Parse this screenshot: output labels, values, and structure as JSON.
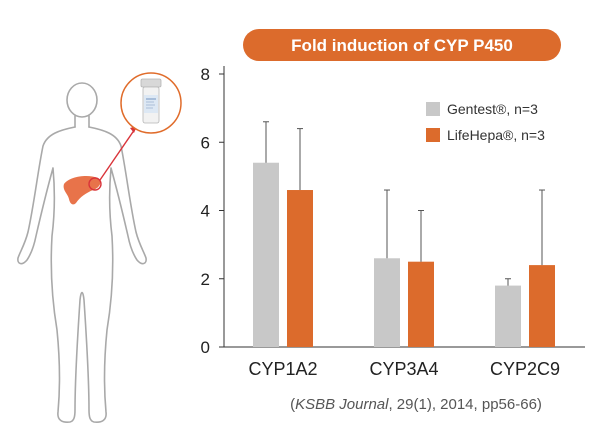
{
  "chart_data": {
    "type": "bar",
    "title": "Fold induction of CYP P450",
    "categories": [
      "CYP1A2",
      "CYP3A4",
      "CYP2C9"
    ],
    "series": [
      {
        "name": "Gentest®, n=3",
        "values": [
          5.4,
          2.6,
          1.8
        ],
        "error": [
          1.2,
          2.0,
          0.2
        ],
        "color": "#c8c8c8"
      },
      {
        "name": "LifeHepa®, n=3",
        "values": [
          4.6,
          2.5,
          2.4
        ],
        "error": [
          1.8,
          1.5,
          2.2
        ],
        "color": "#dc6b2c"
      }
    ],
    "yticks": [
      "0",
      "2",
      "4",
      "6",
      "8"
    ],
    "ylim": [
      0,
      8
    ],
    "grid": false,
    "legend_position": "top-right",
    "citation": {
      "open": "(",
      "journal": "KSBB Journal",
      "rest": ", 29(1), 2014, pp56-66)"
    }
  },
  "colors": {
    "title_pill": "#dc6b2c",
    "title_text": "#ffffff",
    "figure_stroke": "#a9a9a9",
    "liver": "#e8734a",
    "pointer_line": "#d9343a"
  },
  "icons": {
    "human_figure": "human-body-outline-icon",
    "liver": "liver-icon",
    "sample_tube": "sample-tube-icon"
  }
}
